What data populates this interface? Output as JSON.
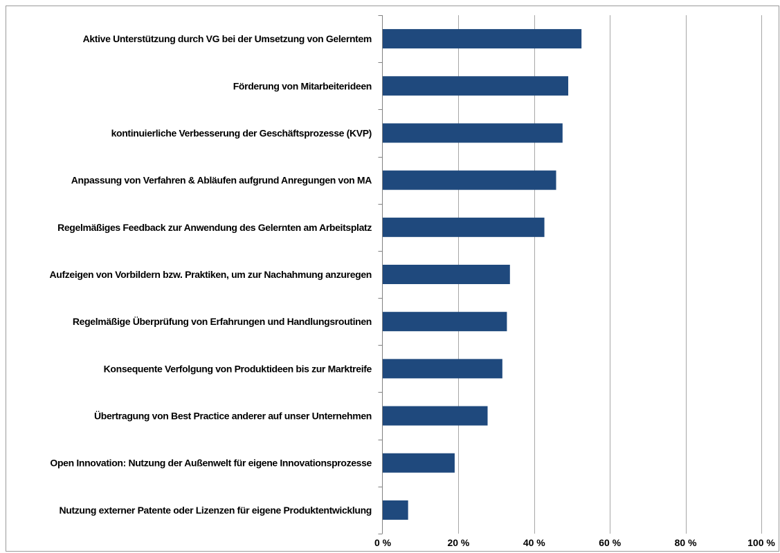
{
  "chart_data": {
    "type": "bar",
    "orientation": "horizontal",
    "categories": [
      "Aktive Unterstützung durch VG bei der Umsetzung von Gelerntem",
      "Förderung von Mitarbeiterideen",
      "kontinuierliche Verbesserung der Geschäftsprozesse (KVP)",
      "Anpassung von Verfahren & Abläufen aufgrund Anregungen von MA",
      "Regelmäßiges Feedback zur Anwendung des Gelernten am Arbeitsplatz",
      "Aufzeigen von Vorbildern bzw. Praktiken, um zur Nachahmung anzuregen",
      "Regelmäßige Überprüfung von Erfahrungen und Handlungsroutinen",
      "Konsequente Verfolgung von Produktideen bis zur Marktreife",
      "Übertragung von Best Practice anderer auf unser Unternehmen",
      "Open Innovation: Nutzung der Außenwelt für eigene Innovationsprozesse",
      "Nutzung externer Patente oder Lizenzen für eigene Produktentwicklung"
    ],
    "values": [
      52.5,
      49,
      47.5,
      45.8,
      42.7,
      33.6,
      32.8,
      31.6,
      27.7,
      19,
      6.7
    ],
    "xlim": [
      0,
      100
    ],
    "xticks": [
      0,
      20,
      40,
      60,
      80,
      100
    ],
    "xtick_labels": [
      "0 %",
      "20 %",
      "40 %",
      "60 %",
      "80 %",
      "100 %"
    ],
    "grid": true,
    "legend": "none",
    "bar_color": "#1F497D",
    "gridline_color": "#A6A6A6",
    "axis_color": "#808080"
  }
}
